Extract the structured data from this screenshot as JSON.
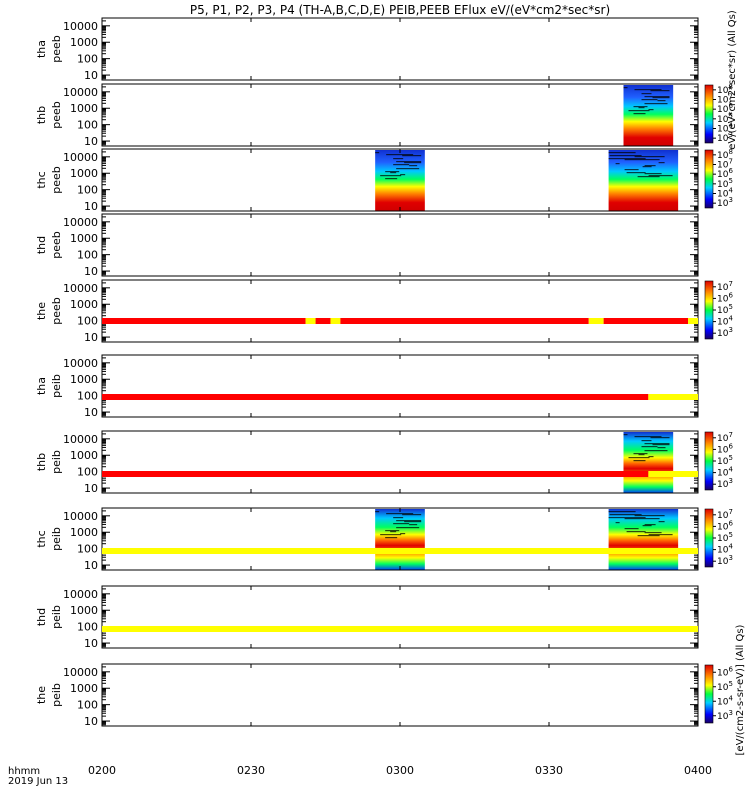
{
  "title": "P5, P1, P2, P3, P4 (TH-A,B,C,D,E) PEIB,PEEB EFlux eV/(eV*cm2*sec*sr)",
  "footer": {
    "line1": "hhmm",
    "line2": "2019 Jun 13"
  },
  "colors": {
    "low": "#1a0066",
    "high": "#c80000",
    "flag_red": "#ff0000",
    "flag_yellow": "#ffff00",
    "frame": "#000000"
  },
  "chart_data": {
    "type": "heatmap",
    "x_unit": "hhmm",
    "xlim": [
      "0200",
      "0400"
    ],
    "x_ticks": [
      "0200",
      "0230",
      "0300",
      "0330",
      "0400"
    ],
    "y_scale": "log",
    "y_ticks": [
      "10",
      "100",
      "1000",
      "10000"
    ],
    "y_ticks_short": [
      "10",
      "100",
      "1000"
    ],
    "panels": [
      {
        "label1": "tha",
        "label2": "peeb",
        "ylim": [
          5,
          30000
        ],
        "data_blocks": [],
        "colorbar": null
      },
      {
        "label1": "thb",
        "label2": "peeb",
        "ylim": [
          5,
          30000
        ],
        "data_blocks": [
          {
            "start": "0345",
            "end": "0355"
          }
        ],
        "colorbar": {
          "ticks": [
            "10^3",
            "10^4",
            "10^5",
            "10^6",
            "10^7",
            "10^8"
          ]
        }
      },
      {
        "label1": "thc",
        "label2": "peeb",
        "ylim": [
          5,
          30000
        ],
        "data_blocks": [
          {
            "start": "0255",
            "end": "0305"
          },
          {
            "start": "0342",
            "end": "0356"
          }
        ],
        "colorbar": {
          "ticks": [
            "10^3",
            "10^4",
            "10^5",
            "10^6",
            "10^7",
            "10^8"
          ]
        }
      },
      {
        "label1": "thd",
        "label2": "peeb",
        "ylim": [
          5,
          30000
        ],
        "data_blocks": [],
        "colorbar": null
      },
      {
        "label1": "the",
        "label2": "peeb",
        "ylim": [
          5,
          30000
        ],
        "data_blocks": [],
        "colorbar": {
          "ticks": [
            "10^3",
            "10^4",
            "10^5",
            "10^6",
            "10^7"
          ]
        }
      },
      {
        "label1": "tha",
        "label2": "peib",
        "ylim": [
          5,
          30000
        ],
        "data_blocks": [],
        "colorbar": null
      },
      {
        "label1": "thb",
        "label2": "peib",
        "ylim": [
          5,
          30000
        ],
        "data_blocks": [
          {
            "start": "0345",
            "end": "0355"
          }
        ],
        "colorbar": {
          "ticks": [
            "10^3",
            "10^4",
            "10^5",
            "10^6",
            "10^7"
          ]
        }
      },
      {
        "label1": "thc",
        "label2": "peib",
        "ylim": [
          5,
          30000
        ],
        "data_blocks": [
          {
            "start": "0255",
            "end": "0305"
          },
          {
            "start": "0342",
            "end": "0356"
          }
        ],
        "colorbar": {
          "ticks": [
            "10^3",
            "10^4",
            "10^5",
            "10^6",
            "10^7"
          ]
        }
      },
      {
        "label1": "thd",
        "label2": "peib",
        "ylim": [
          5,
          30000
        ],
        "data_blocks": [],
        "colorbar": null
      },
      {
        "label1": "the",
        "label2": "peib",
        "ylim": [
          5,
          30000
        ],
        "data_blocks": [],
        "colorbar": {
          "ticks": [
            "10^3",
            "10^4",
            "10^5",
            "10^6"
          ]
        }
      }
    ],
    "flag_bars": [
      {
        "after_panel": 4,
        "segments": [
          {
            "start": "0200",
            "end": "0241",
            "color": "red"
          },
          {
            "start": "0241",
            "end": "0243",
            "color": "yellow"
          },
          {
            "start": "0243",
            "end": "0246",
            "color": "red"
          },
          {
            "start": "0246",
            "end": "0248",
            "color": "yellow"
          },
          {
            "start": "0248",
            "end": "0338",
            "color": "red"
          },
          {
            "start": "0338",
            "end": "0341",
            "color": "yellow"
          },
          {
            "start": "0341",
            "end": "0358",
            "color": "red"
          },
          {
            "start": "0358",
            "end": "0400",
            "color": "yellow"
          }
        ]
      },
      {
        "after_panel": 5,
        "segments": [
          {
            "start": "0200",
            "end": "0350",
            "color": "red"
          },
          {
            "start": "0350",
            "end": "0400",
            "color": "yellow"
          }
        ]
      },
      {
        "after_panel": 6,
        "segments": [
          {
            "start": "0200",
            "end": "0350",
            "color": "red"
          },
          {
            "start": "0350",
            "end": "0400",
            "color": "yellow"
          }
        ]
      },
      {
        "after_panel": 7,
        "segments": [
          {
            "start": "0200",
            "end": "0400",
            "color": "yellow"
          }
        ]
      },
      {
        "after_panel": 8,
        "segments": [
          {
            "start": "0200",
            "end": "0400",
            "color": "yellow"
          }
        ]
      }
    ],
    "colorbar_label_top": "eV/(eV*cm2*sec*sr) (All Qs)",
    "colorbar_label_bottom": "[eV/(cm2-s-sr-eV)] (All Qs)"
  }
}
